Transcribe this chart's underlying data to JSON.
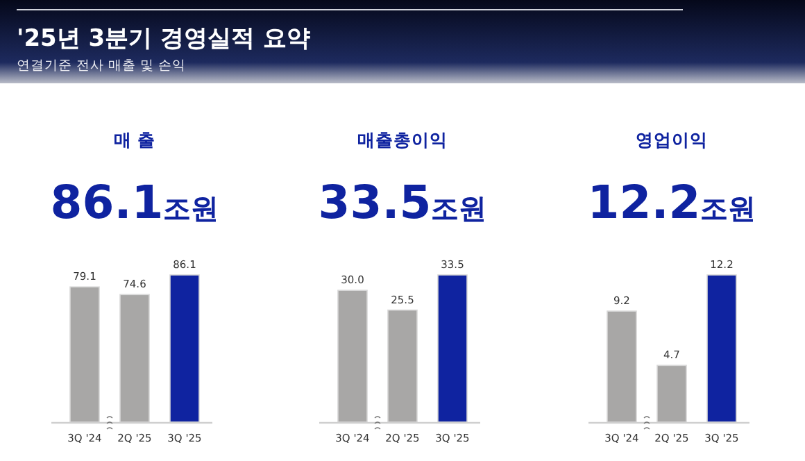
{
  "chart_data": [
    {
      "type": "other",
      "title": "'25년 3분기 경영실적 요약",
      "subtitle": "연결기준 전사 매출 및 손익"
    },
    {
      "type": "bar",
      "title": "매 출",
      "subtitle": "86.1조원",
      "categories": [
        "3Q '24",
        "2Q '25",
        "3Q '25"
      ],
      "values": [
        79.1,
        74.6,
        86.1
      ],
      "value_labels": [
        "79.1",
        "74.6",
        "86.1"
      ],
      "colors": [
        "#a8a7a6",
        "#a8a7a6",
        "#0f23a0"
      ]
    },
    {
      "type": "bar",
      "title": "매출총이익",
      "subtitle": "33.5조원",
      "categories": [
        "3Q '24",
        "2Q '25",
        "3Q '25"
      ],
      "values": [
        30.0,
        25.5,
        33.5
      ],
      "value_labels": [
        "30.0",
        "25.5",
        "33.5"
      ],
      "colors": [
        "#a8a7a6",
        "#a8a7a6",
        "#0f23a0"
      ]
    },
    {
      "type": "bar",
      "title": "영업이익",
      "subtitle": "12.2조원",
      "categories": [
        "3Q '24",
        "2Q '25",
        "3Q '25"
      ],
      "values": [
        9.2,
        4.7,
        12.2
      ],
      "value_labels": [
        "9.2",
        "4.7",
        "12.2"
      ],
      "colors": [
        "#a8a7a6",
        "#a8a7a6",
        "#0f23a0"
      ]
    }
  ]
}
